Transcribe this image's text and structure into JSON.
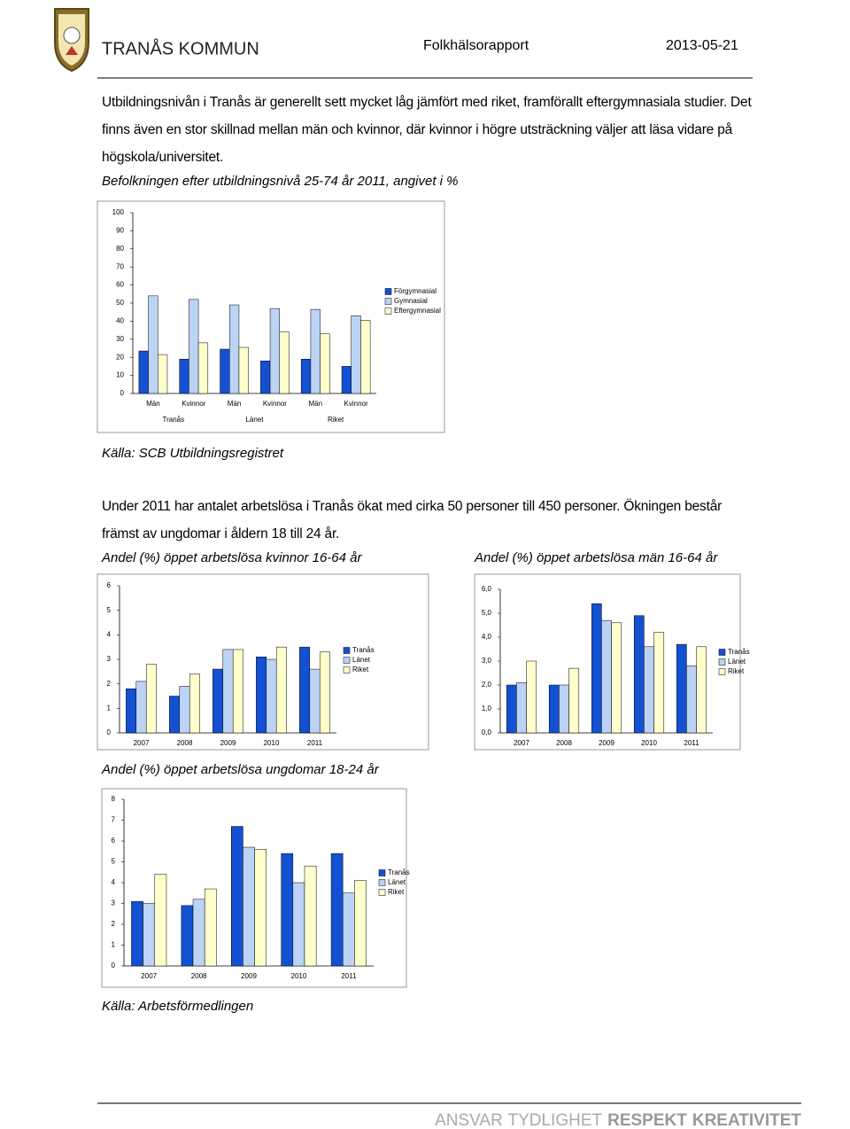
{
  "header": {
    "org": "TRANÅS KOMMUN",
    "report": "Folkhälsorapport",
    "date": "2013-05-21"
  },
  "paragraphs": [
    "Utbildningsnivån i Tranås är generellt sett mycket låg jämfört med riket, framförallt eftergymnasiala studier. Det finns även en stor skillnad mellan män och kvinnor, där kvinnor i högre utsträckning väljer att läsa vidare på högskola/universitet.",
    "Under 2011 har antalet arbetslösa i Tranås ökat med cirka 50 personer till 450 personer. Ökningen består främst av ungdomar i åldern 18 till 24 år."
  ],
  "sources": [
    "Källa: SCB Utbildningsregistret",
    "Källa: Arbetsförmedlingen"
  ],
  "chart_data": [
    {
      "type": "bar",
      "title": "Befolkningen efter utbildningsnivå 25-74 år 2011, angivet i %",
      "categories": [
        "Män",
        "Kvinnor",
        "Män",
        "Kvinnor",
        "Män",
        "Kvinnor"
      ],
      "group_labels": [
        "Tranås",
        "Länet",
        "Riket"
      ],
      "series": [
        {
          "name": "Förgymnasial",
          "color": "#1450d2",
          "values": [
            23.5,
            19,
            24.5,
            18,
            19,
            15
          ]
        },
        {
          "name": "Gymnasial",
          "color": "#bcd3f5",
          "values": [
            54,
            52,
            49,
            47,
            46.5,
            43
          ]
        },
        {
          "name": "Eftergymnasial",
          "color": "#ffffcc",
          "values": [
            21.5,
            28,
            25.5,
            34,
            33,
            40.5
          ]
        }
      ],
      "ylim": [
        0,
        100
      ],
      "yticks": [
        0,
        10,
        20,
        30,
        40,
        50,
        60,
        70,
        80,
        90,
        100
      ],
      "grid": false,
      "legend": "right"
    },
    {
      "type": "bar",
      "title": "Andel (%) öppet arbetslösa kvinnor 16-64 år",
      "categories": [
        "2007",
        "2008",
        "2009",
        "2010",
        "2011"
      ],
      "series": [
        {
          "name": "Tranås",
          "color": "#1450d2",
          "values": [
            1.8,
            1.5,
            2.6,
            3.1,
            3.5
          ]
        },
        {
          "name": "Länet",
          "color": "#bcd3f5",
          "values": [
            2.1,
            1.9,
            3.4,
            3.0,
            2.6
          ]
        },
        {
          "name": "Riket",
          "color": "#ffffcc",
          "values": [
            2.8,
            2.4,
            3.4,
            3.5,
            3.3
          ]
        }
      ],
      "ylim": [
        0,
        6
      ],
      "yticks": [
        0,
        1,
        2,
        3,
        4,
        5,
        6
      ],
      "grid": false,
      "legend": "right"
    },
    {
      "type": "bar",
      "title": "Andel (%) öppet arbetslösa män 16-64 år",
      "categories": [
        "2007",
        "2008",
        "2009",
        "2010",
        "2011"
      ],
      "series": [
        {
          "name": "Tranås",
          "color": "#1450d2",
          "values": [
            2.0,
            2.0,
            5.4,
            4.9,
            3.7
          ]
        },
        {
          "name": "Länet",
          "color": "#bcd3f5",
          "values": [
            2.1,
            2.0,
            4.7,
            3.6,
            2.8
          ]
        },
        {
          "name": "Riket",
          "color": "#ffffcc",
          "values": [
            3.0,
            2.7,
            4.6,
            4.2,
            3.6
          ]
        }
      ],
      "ylim": [
        0,
        6
      ],
      "yticks": [
        {
          "value": 0,
          "label": "0,0"
        },
        {
          "value": 1,
          "label": "1,0"
        },
        {
          "value": 2,
          "label": "2,0"
        },
        {
          "value": 3,
          "label": "3,0"
        },
        {
          "value": 4,
          "label": "4,0"
        },
        {
          "value": 5,
          "label": "5,0"
        },
        {
          "value": 6,
          "label": "6,0"
        }
      ],
      "grid": false,
      "legend": "right"
    },
    {
      "type": "bar",
      "title": "Andel (%) öppet arbetslösa ungdomar 18-24 år",
      "categories": [
        "2007",
        "2008",
        "2009",
        "2010",
        "2011"
      ],
      "series": [
        {
          "name": "Tranås",
          "color": "#1450d2",
          "values": [
            3.1,
            2.9,
            6.7,
            5.4,
            5.4
          ]
        },
        {
          "name": "Länet",
          "color": "#bcd3f5",
          "values": [
            3.0,
            3.2,
            5.7,
            4.0,
            3.5
          ]
        },
        {
          "name": "Riket",
          "color": "#ffffcc",
          "values": [
            4.4,
            3.7,
            5.6,
            4.8,
            4.1
          ]
        }
      ],
      "ylim": [
        0,
        8
      ],
      "yticks": [
        0,
        1,
        2,
        3,
        4,
        5,
        6,
        7,
        8
      ],
      "grid": false,
      "legend": "right"
    }
  ],
  "footer": {
    "words": [
      "ANSVAR",
      "TYDLIGHET",
      "RESPEKT",
      "KREATIVITET"
    ]
  }
}
